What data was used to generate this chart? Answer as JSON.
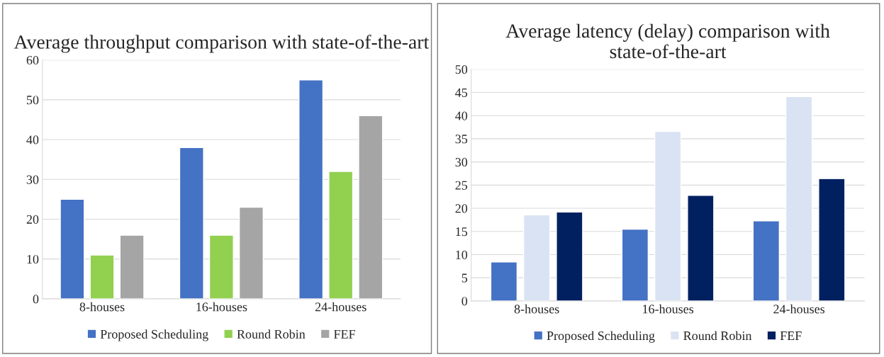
{
  "chart_data": [
    {
      "type": "bar",
      "title": "Average throughput comparison with state-of-the-art",
      "categories": [
        "8-houses",
        "16-houses",
        "24-houses"
      ],
      "series": [
        {
          "name": "Proposed Scheduling",
          "color": "#4472c4",
          "values": [
            25,
            38,
            55
          ]
        },
        {
          "name": "Round Robin",
          "color": "#92d050",
          "values": [
            11,
            16,
            32
          ]
        },
        {
          "name": "FEF",
          "color": "#a5a5a5",
          "values": [
            16,
            23,
            46
          ]
        }
      ],
      "ylim": [
        0,
        60
      ],
      "yticks": [
        0,
        10,
        20,
        30,
        40,
        50,
        60
      ],
      "grid": "y",
      "legend": "bottom"
    },
    {
      "type": "bar",
      "title": "Average latency (delay) comparison with state-of-the-art",
      "categories": [
        "8-houses",
        "16-houses",
        "24-houses"
      ],
      "series": [
        {
          "name": "Proposed Scheduling",
          "color": "#4472c4",
          "values": [
            8.4,
            15.5,
            17.3
          ]
        },
        {
          "name": "Round Robin",
          "color": "#dae3f3",
          "values": [
            18.6,
            36.6,
            44.1
          ]
        },
        {
          "name": "FEF",
          "color": "#002060",
          "values": [
            19.2,
            22.8,
            26.4
          ]
        }
      ],
      "ylim": [
        0,
        50
      ],
      "yticks": [
        0,
        5,
        10,
        15,
        20,
        25,
        30,
        35,
        40,
        45,
        50
      ],
      "grid": "y",
      "legend": "bottom"
    }
  ]
}
